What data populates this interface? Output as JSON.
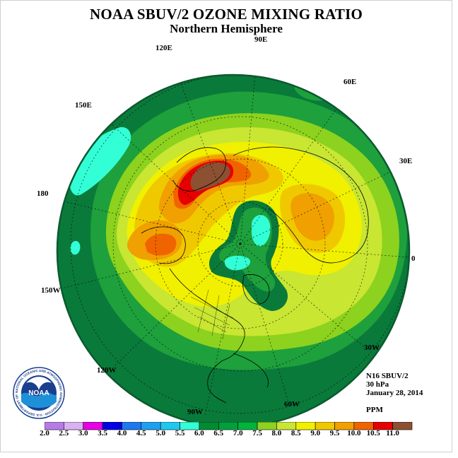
{
  "title": "NOAA SBUV/2 OZONE MIXING RATIO",
  "subtitle": "Northern Hemisphere",
  "longitudes": {
    "l120e": "120E",
    "l90e": "90E",
    "l60e": "60E",
    "l150e": "150E",
    "l30e": "30E",
    "l180": "180",
    "l0": "0",
    "l150w": "150W",
    "l30w": "30W",
    "l120w": "120W",
    "l90w": "90W",
    "l60w": "60W"
  },
  "info": {
    "instrument": "N16 SBUV/2",
    "level": "30 hPa",
    "date": "January 28, 2014",
    "units": "PPM"
  },
  "logo": {
    "text": "NOAA",
    "ring_text": "NATIONAL OCEANIC AND ATMOSPHERIC ADMINISTRATION · U.S. DEPARTMENT OF COMMERCE"
  },
  "colorbar": {
    "labels": [
      "2.0",
      "2.5",
      "3.0",
      "3.5",
      "4.0",
      "4.5",
      "5.0",
      "5.5",
      "6.0",
      "6.5",
      "7.0",
      "7.5",
      "8.0",
      "8.5",
      "9.0",
      "9.5",
      "10.0",
      "10.5",
      "11.0"
    ],
    "colors": [
      "#b77be6",
      "#dab1f2",
      "#e600e6",
      "#0000e6",
      "#1e78f0",
      "#1ea0f0",
      "#1ec8f0",
      "#33ffd6",
      "#008c32",
      "#00a03c",
      "#00b43c",
      "#8cd21e",
      "#c8e632",
      "#f0f000",
      "#f0c800",
      "#f0a000",
      "#f06400",
      "#e60000",
      "#8c5032"
    ]
  },
  "map_colors": {
    "background": "#0a6e3c",
    "dark_green": "#007a32",
    "green": "#1ea03c",
    "light_green": "#8cd21e",
    "yellow_green": "#c8e632",
    "yellow": "#f0f000",
    "gold": "#f0c800",
    "orange": "#f0a000",
    "dark_orange": "#f06400",
    "red": "#e60000",
    "brown": "#8c5032",
    "aqua": "#33ffd6"
  }
}
